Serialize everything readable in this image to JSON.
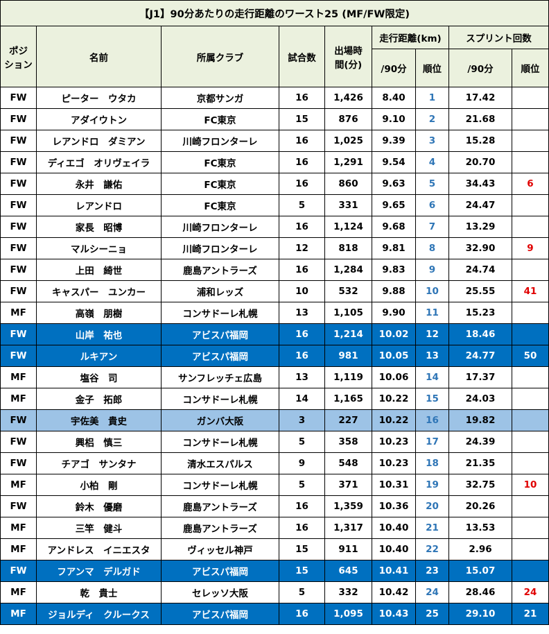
{
  "title": "【J1】90分あたりの走行距離のワースト25 (MF/FW限定)",
  "headers": {
    "position_line1": "ポジ",
    "position_line2": "ション",
    "name": "名前",
    "club": "所属クラブ",
    "matches": "試合数",
    "minutes_line1": "出場時",
    "minutes_line2": "間(分)",
    "distance": "走行距離(km)",
    "sprints": "スプリント回数",
    "per90_a": "/90分",
    "rank_a": "順位",
    "per90_b": "/90分",
    "rank_b": "順位"
  },
  "rows": [
    {
      "pos": "FW",
      "name": "ピーター　ウタカ",
      "club": "京都サンガ",
      "games": "16",
      "minutes": "1,426",
      "dist": "8.40",
      "rank": "1",
      "sprint": "17.42",
      "srank": "",
      "style": "white"
    },
    {
      "pos": "FW",
      "name": "アダイウトン",
      "club": "FC東京",
      "games": "15",
      "minutes": "876",
      "dist": "9.10",
      "rank": "2",
      "sprint": "21.68",
      "srank": "",
      "style": "white"
    },
    {
      "pos": "FW",
      "name": "レアンドロ　ダミアン",
      "club": "川崎フロンターレ",
      "games": "16",
      "minutes": "1,025",
      "dist": "9.39",
      "rank": "3",
      "sprint": "15.28",
      "srank": "",
      "style": "white"
    },
    {
      "pos": "FW",
      "name": "ディエゴ　オリヴェイラ",
      "club": "FC東京",
      "games": "16",
      "minutes": "1,291",
      "dist": "9.54",
      "rank": "4",
      "sprint": "20.70",
      "srank": "",
      "style": "white"
    },
    {
      "pos": "FW",
      "name": "永井　謙佑",
      "club": "FC東京",
      "games": "16",
      "minutes": "860",
      "dist": "9.63",
      "rank": "5",
      "sprint": "34.43",
      "srank": "6",
      "style": "white"
    },
    {
      "pos": "FW",
      "name": "レアンドロ",
      "club": "FC東京",
      "games": "5",
      "minutes": "331",
      "dist": "9.65",
      "rank": "6",
      "sprint": "24.47",
      "srank": "",
      "style": "white"
    },
    {
      "pos": "FW",
      "name": "家長　昭博",
      "club": "川崎フロンターレ",
      "games": "16",
      "minutes": "1,124",
      "dist": "9.68",
      "rank": "7",
      "sprint": "13.29",
      "srank": "",
      "style": "white"
    },
    {
      "pos": "FW",
      "name": "マルシーニョ",
      "club": "川崎フロンターレ",
      "games": "12",
      "minutes": "818",
      "dist": "9.81",
      "rank": "8",
      "sprint": "32.90",
      "srank": "9",
      "style": "white"
    },
    {
      "pos": "FW",
      "name": "上田　綺世",
      "club": "鹿島アントラーズ",
      "games": "16",
      "minutes": "1,284",
      "dist": "9.83",
      "rank": "9",
      "sprint": "24.74",
      "srank": "",
      "style": "white"
    },
    {
      "pos": "FW",
      "name": "キャスパー　ユンカー",
      "club": "浦和レッズ",
      "games": "10",
      "minutes": "532",
      "dist": "9.88",
      "rank": "10",
      "sprint": "25.55",
      "srank": "41",
      "style": "white"
    },
    {
      "pos": "MF",
      "name": "高嶺　朋樹",
      "club": "コンサドーレ札幌",
      "games": "13",
      "minutes": "1,105",
      "dist": "9.90",
      "rank": "11",
      "sprint": "15.23",
      "srank": "",
      "style": "white"
    },
    {
      "pos": "FW",
      "name": "山岸　祐也",
      "club": "アビスパ福岡",
      "games": "16",
      "minutes": "1,214",
      "dist": "10.02",
      "rank": "12",
      "sprint": "18.46",
      "srank": "",
      "style": "dark"
    },
    {
      "pos": "FW",
      "name": "ルキアン",
      "club": "アビスパ福岡",
      "games": "16",
      "minutes": "981",
      "dist": "10.05",
      "rank": "13",
      "sprint": "24.77",
      "srank": "50",
      "style": "dark"
    },
    {
      "pos": "MF",
      "name": "塩谷　司",
      "club": "サンフレッチェ広島",
      "games": "13",
      "minutes": "1,119",
      "dist": "10.06",
      "rank": "14",
      "sprint": "17.37",
      "srank": "",
      "style": "white"
    },
    {
      "pos": "MF",
      "name": "金子　拓郎",
      "club": "コンサドーレ札幌",
      "games": "14",
      "minutes": "1,165",
      "dist": "10.22",
      "rank": "15",
      "sprint": "24.03",
      "srank": "",
      "style": "white"
    },
    {
      "pos": "FW",
      "name": "宇佐美　貴史",
      "club": "ガンバ大阪",
      "games": "3",
      "minutes": "227",
      "dist": "10.22",
      "rank": "16",
      "sprint": "19.82",
      "srank": "",
      "style": "light"
    },
    {
      "pos": "FW",
      "name": "興梠　慎三",
      "club": "コンサドーレ札幌",
      "games": "5",
      "minutes": "358",
      "dist": "10.23",
      "rank": "17",
      "sprint": "24.39",
      "srank": "",
      "style": "white"
    },
    {
      "pos": "FW",
      "name": "チアゴ　サンタナ",
      "club": "清水エスパルス",
      "games": "9",
      "minutes": "548",
      "dist": "10.23",
      "rank": "18",
      "sprint": "21.35",
      "srank": "",
      "style": "white"
    },
    {
      "pos": "MF",
      "name": "小柏　剛",
      "club": "コンサドーレ札幌",
      "games": "5",
      "minutes": "371",
      "dist": "10.31",
      "rank": "19",
      "sprint": "32.75",
      "srank": "10",
      "style": "white"
    },
    {
      "pos": "FW",
      "name": "鈴木　優磨",
      "club": "鹿島アントラーズ",
      "games": "16",
      "minutes": "1,359",
      "dist": "10.36",
      "rank": "20",
      "sprint": "20.26",
      "srank": "",
      "style": "white"
    },
    {
      "pos": "MF",
      "name": "三竿　健斗",
      "club": "鹿島アントラーズ",
      "games": "16",
      "minutes": "1,317",
      "dist": "10.40",
      "rank": "21",
      "sprint": "13.53",
      "srank": "",
      "style": "white"
    },
    {
      "pos": "MF",
      "name": "アンドレス　イニエスタ",
      "club": "ヴィッセル神戸",
      "games": "15",
      "minutes": "911",
      "dist": "10.40",
      "rank": "22",
      "sprint": "2.96",
      "srank": "",
      "style": "white"
    },
    {
      "pos": "FW",
      "name": "フアンマ　デルガド",
      "club": "アビスパ福岡",
      "games": "15",
      "minutes": "645",
      "dist": "10.41",
      "rank": "23",
      "sprint": "15.07",
      "srank": "",
      "style": "dark"
    },
    {
      "pos": "MF",
      "name": "乾　貴士",
      "club": "セレッソ大阪",
      "games": "5",
      "minutes": "332",
      "dist": "10.42",
      "rank": "24",
      "sprint": "28.46",
      "srank": "24",
      "style": "white"
    },
    {
      "pos": "MF",
      "name": "ジョルディ　クルークス",
      "club": "アビスパ福岡",
      "games": "16",
      "minutes": "1,095",
      "dist": "10.43",
      "rank": "25",
      "sprint": "29.10",
      "srank": "21",
      "style": "dark"
    }
  ],
  "colors": {
    "header_bg": "#ebf1de",
    "avispa_row": "#0070c0",
    "gamba_row": "#9dc3e6",
    "rank_text": "#2e75b6",
    "sprint_rank_text": "#e00000"
  }
}
